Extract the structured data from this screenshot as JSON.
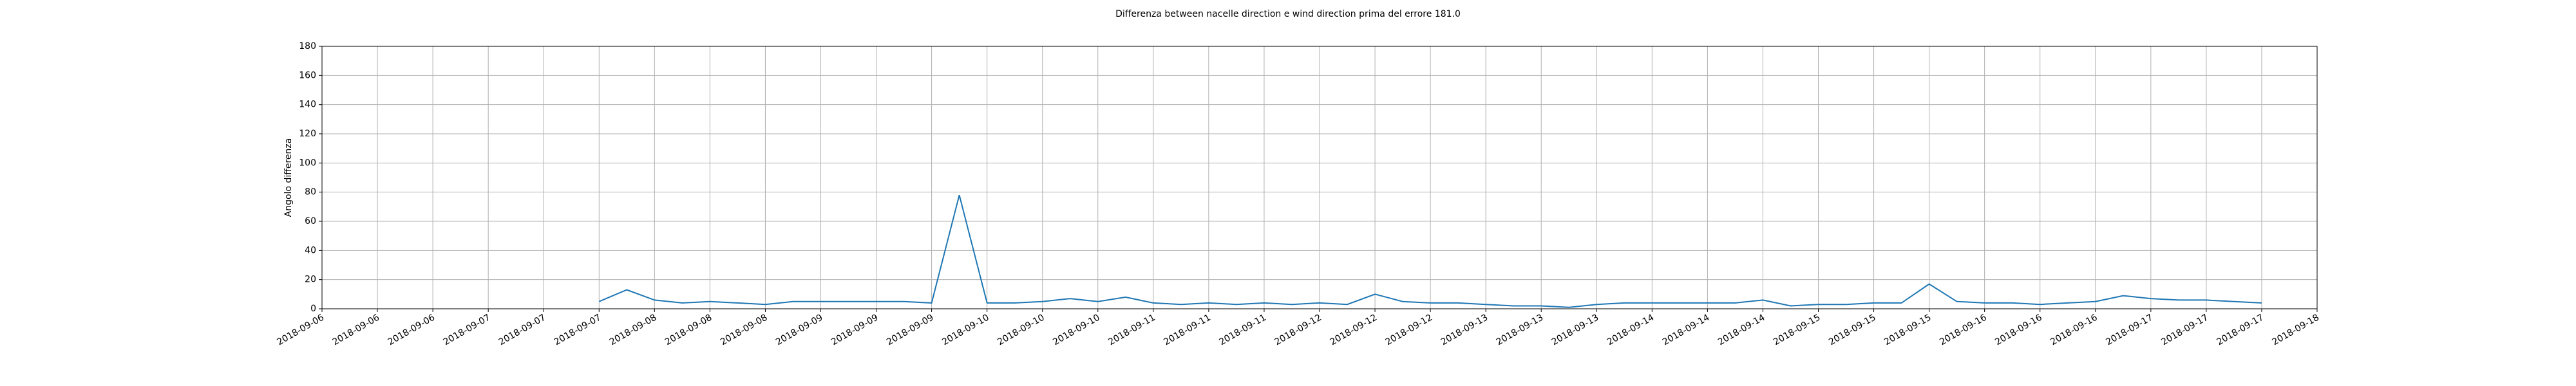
{
  "chart_data": {
    "type": "line",
    "title": "Differenza between nacelle direction e wind direction prima del errore 181.0",
    "y_label": "Angolo differenza",
    "ylim": [
      0,
      180
    ],
    "yticks": [
      0,
      20,
      40,
      60,
      80,
      100,
      120,
      140,
      160,
      180
    ],
    "xticks": [
      "2018-09-06",
      "2018-09-06",
      "2018-09-06",
      "2018-09-07",
      "2018-09-07",
      "2018-09-07",
      "2018-09-08",
      "2018-09-08",
      "2018-09-08",
      "2018-09-09",
      "2018-09-09",
      "2018-09-09",
      "2018-09-10",
      "2018-09-10",
      "2018-09-10",
      "2018-09-11",
      "2018-09-11",
      "2018-09-11",
      "2018-09-12",
      "2018-09-12",
      "2018-09-12",
      "2018-09-13",
      "2018-09-13",
      "2018-09-13",
      "2018-09-14",
      "2018-09-14",
      "2018-09-14",
      "2018-09-15",
      "2018-09-15",
      "2018-09-15",
      "2018-09-16",
      "2018-09-16",
      "2018-09-16",
      "2018-09-17",
      "2018-09-17",
      "2018-09-17",
      "2018-09-18"
    ],
    "grid": true,
    "series": [
      {
        "color": "#1f77b4",
        "values": [
          null,
          null,
          null,
          null,
          null,
          null,
          null,
          null,
          null,
          null,
          5,
          13,
          6,
          4,
          5,
          4,
          3,
          5,
          5,
          5,
          5,
          5,
          4,
          78,
          4,
          4,
          5,
          7,
          5,
          8,
          4,
          3,
          4,
          3,
          4,
          3,
          4,
          3,
          10,
          5,
          4,
          4,
          3,
          2,
          2,
          1,
          3,
          4,
          4,
          4,
          4,
          4,
          6,
          2,
          3,
          3,
          4,
          4,
          17,
          5,
          4,
          4,
          3,
          4,
          5,
          9,
          7,
          6,
          6,
          5,
          4,
          null,
          null
        ]
      }
    ]
  }
}
